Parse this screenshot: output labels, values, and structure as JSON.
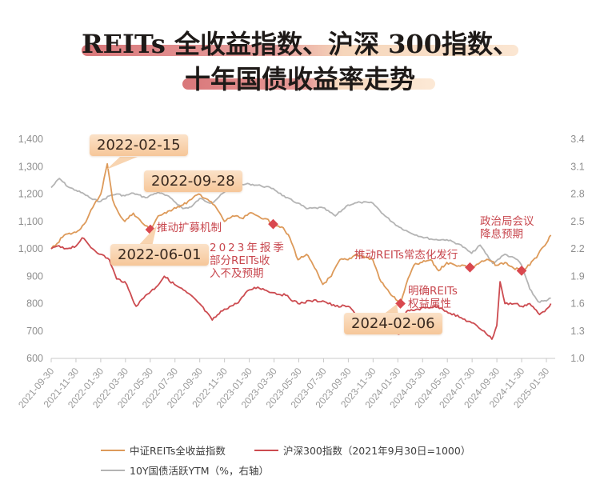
{
  "title": {
    "line1": "REITs 全收益指数、沪深 300指数、",
    "line2": "十年国债收益率走势"
  },
  "colors": {
    "reits": "#dd9a5a",
    "csi300": "#cc4b50",
    "ytm": "#b4b4b4",
    "marker": "#d9484f",
    "note_text": "#c8474e"
  },
  "legend": {
    "reits": "中证REITs全收益指数",
    "csi300": "沪深300指数（2021年9月30日=1000）",
    "ytm": "10Y国债活跃YTM（%，右轴）"
  },
  "callouts": {
    "c1": "2022-02-15",
    "c2": "2022-09-28",
    "c3": "2022-06-01",
    "c4": "2024-02-06"
  },
  "notes": {
    "n1": "推动扩募机制",
    "n2_l1": "2023年报季",
    "n2_l2": "部分REITs收",
    "n2_l3": "入不及预期",
    "n3": "推动REITs常态化发行",
    "n4_l1": "明确REITs",
    "n4_l2": "权益属性",
    "n5_l1": "政治局会议",
    "n5_l2": "降息预期"
  },
  "chart_data": {
    "type": "line",
    "title": "REITs 全收益指数、沪深 300指数、十年国债收益率走势",
    "xlabel": "",
    "ylabel": "",
    "y_left": {
      "ticks": [
        "600",
        "700",
        "800",
        "900",
        "1,000",
        "1,100",
        "1,200",
        "1,300",
        "1,400"
      ],
      "range": [
        600,
        1400
      ]
    },
    "y_right": {
      "ticks": [
        "1.0",
        "1.3",
        "1.6",
        "1.9",
        "2.2",
        "2.5",
        "2.8",
        "3.1",
        "3.4"
      ],
      "range": [
        1.0,
        3.4
      ]
    },
    "x_ticks": [
      "2021-09-30",
      "2021-11-30",
      "2022-01-30",
      "2022-03-30",
      "2022-05-30",
      "2022-07-30",
      "2022-09-30",
      "2022-11-30",
      "2023-01-30",
      "2023-03-30",
      "2023-05-30",
      "2023-07-30",
      "2023-09-30",
      "2023-11-30",
      "2024-01-30",
      "2024-03-30",
      "2024-05-30",
      "2024-07-30",
      "2024-09-30",
      "2024-11-30",
      "2025-01-30"
    ],
    "legend_position": "bottom",
    "grid": false,
    "series": [
      {
        "name": "中证REITs全收益指数",
        "axis": "left",
        "x": [
          "2021-09-30",
          "2021-10-15",
          "2021-11-01",
          "2021-11-30",
          "2021-12-20",
          "2022-01-10",
          "2022-01-30",
          "2022-02-15",
          "2022-02-28",
          "2022-03-15",
          "2022-03-30",
          "2022-04-20",
          "2022-05-15",
          "2022-06-01",
          "2022-06-20",
          "2022-07-10",
          "2022-07-30",
          "2022-08-20",
          "2022-09-10",
          "2022-09-28",
          "2022-10-20",
          "2022-11-10",
          "2022-11-30",
          "2022-12-20",
          "2023-01-15",
          "2023-01-30",
          "2023-02-20",
          "2023-03-10",
          "2023-03-30",
          "2023-04-20",
          "2023-05-10",
          "2023-05-30",
          "2023-06-20",
          "2023-07-10",
          "2023-07-30",
          "2023-08-20",
          "2023-09-10",
          "2023-09-30",
          "2023-10-20",
          "2023-11-10",
          "2023-11-30",
          "2023-12-20",
          "2024-01-10",
          "2024-01-30",
          "2024-02-06",
          "2024-02-20",
          "2024-03-10",
          "2024-03-30",
          "2024-04-20",
          "2024-05-10",
          "2024-05-30",
          "2024-06-20",
          "2024-07-10",
          "2024-07-30",
          "2024-08-20",
          "2024-09-10",
          "2024-09-30",
          "2024-10-20",
          "2024-11-10",
          "2024-11-30",
          "2024-12-20",
          "2025-01-10",
          "2025-01-30",
          "2025-02-10"
        ],
        "values": [
          1000,
          1020,
          1050,
          1060,
          1090,
          1150,
          1200,
          1310,
          1180,
          1130,
          1100,
          1130,
          1090,
          1070,
          1120,
          1130,
          1150,
          1160,
          1180,
          1200,
          1180,
          1150,
          1100,
          1120,
          1110,
          1130,
          1120,
          1110,
          1090,
          1080,
          1040,
          960,
          980,
          930,
          870,
          900,
          960,
          960,
          980,
          970,
          960,
          880,
          840,
          810,
          800,
          870,
          940,
          950,
          960,
          920,
          950,
          940,
          940,
          930,
          950,
          960,
          940,
          950,
          930,
          920,
          940,
          980,
          1020,
          1050
        ]
      },
      {
        "name": "沪深300指数（2021年9月30日=1000）",
        "axis": "left",
        "x": [
          "2021-09-30",
          "2021-10-15",
          "2021-11-01",
          "2021-11-30",
          "2021-12-15",
          "2022-01-10",
          "2022-01-30",
          "2022-02-20",
          "2022-03-10",
          "2022-03-30",
          "2022-04-27",
          "2022-05-20",
          "2022-06-15",
          "2022-07-05",
          "2022-07-30",
          "2022-08-30",
          "2022-09-30",
          "2022-10-31",
          "2022-11-30",
          "2022-12-30",
          "2023-01-30",
          "2023-02-20",
          "2023-03-30",
          "2023-04-30",
          "2023-05-30",
          "2023-06-30",
          "2023-07-30",
          "2023-08-30",
          "2023-09-30",
          "2023-10-30",
          "2023-11-30",
          "2023-12-30",
          "2024-01-20",
          "2024-02-05",
          "2024-02-20",
          "2024-03-20",
          "2024-04-30",
          "2024-05-20",
          "2024-06-30",
          "2024-07-30",
          "2024-08-30",
          "2024-09-18",
          "2024-09-30",
          "2024-10-08",
          "2024-10-20",
          "2024-11-15",
          "2024-11-30",
          "2024-12-20",
          "2025-01-13",
          "2025-01-30",
          "2025-02-10"
        ],
        "values": [
          1000,
          1010,
          1000,
          1010,
          1040,
          1000,
          980,
          960,
          890,
          880,
          790,
          830,
          860,
          900,
          870,
          840,
          800,
          740,
          780,
          800,
          850,
          860,
          840,
          830,
          800,
          810,
          810,
          790,
          790,
          750,
          740,
          730,
          700,
          690,
          770,
          780,
          790,
          780,
          750,
          730,
          700,
          670,
          720,
          880,
          800,
          800,
          790,
          800,
          760,
          780,
          800
        ]
      },
      {
        "name": "10Y国债活跃YTM（%，右轴）",
        "axis": "right",
        "x": [
          "2021-09-30",
          "2021-10-20",
          "2021-11-10",
          "2021-11-30",
          "2021-12-20",
          "2022-01-10",
          "2022-01-30",
          "2022-02-20",
          "2022-03-10",
          "2022-03-30",
          "2022-04-20",
          "2022-05-20",
          "2022-06-20",
          "2022-07-20",
          "2022-08-20",
          "2022-09-10",
          "2022-09-30",
          "2022-10-30",
          "2022-11-30",
          "2022-12-20",
          "2023-01-30",
          "2023-02-28",
          "2023-03-30",
          "2023-04-30",
          "2023-05-30",
          "2023-06-20",
          "2023-07-30",
          "2023-08-30",
          "2023-09-30",
          "2023-10-30",
          "2023-11-30",
          "2023-12-30",
          "2024-01-30",
          "2024-02-28",
          "2024-03-30",
          "2024-04-30",
          "2024-05-30",
          "2024-06-30",
          "2024-07-30",
          "2024-08-20",
          "2024-09-20",
          "2024-10-20",
          "2024-11-20",
          "2024-11-30",
          "2024-12-20",
          "2025-01-10",
          "2025-01-30",
          "2025-02-10"
        ],
        "values": [
          2.87,
          2.97,
          2.88,
          2.84,
          2.8,
          2.74,
          2.72,
          2.78,
          2.8,
          2.78,
          2.81,
          2.76,
          2.82,
          2.76,
          2.64,
          2.66,
          2.75,
          2.7,
          2.82,
          2.89,
          2.91,
          2.89,
          2.86,
          2.76,
          2.7,
          2.64,
          2.65,
          2.56,
          2.68,
          2.71,
          2.7,
          2.56,
          2.45,
          2.38,
          2.33,
          2.3,
          2.3,
          2.25,
          2.15,
          2.24,
          2.04,
          2.14,
          2.08,
          2.02,
          1.76,
          1.62,
          1.63,
          1.66
        ]
      }
    ],
    "annotations": [
      {
        "text": "2022-02-15",
        "type": "callout"
      },
      {
        "text": "2022-09-28",
        "type": "callout"
      },
      {
        "text": "2022-06-01",
        "type": "callout"
      },
      {
        "text": "2024-02-06",
        "type": "callout"
      },
      {
        "text": "推动扩募机制",
        "date": "2022-06-01",
        "marker": "diamond"
      },
      {
        "text": "2023年报季 部分REITs收入不及预期",
        "date": "2023-03-30",
        "marker": "diamond"
      },
      {
        "text": "推动REITs常态化发行",
        "date": "2024-07-26",
        "marker": "diamond"
      },
      {
        "text": "明确REITs权益属性",
        "date": "2024-02-06",
        "marker": "diamond"
      },
      {
        "text": "政治局会议 降息预期",
        "date": "2024-12-09",
        "marker": "diamond"
      }
    ]
  }
}
